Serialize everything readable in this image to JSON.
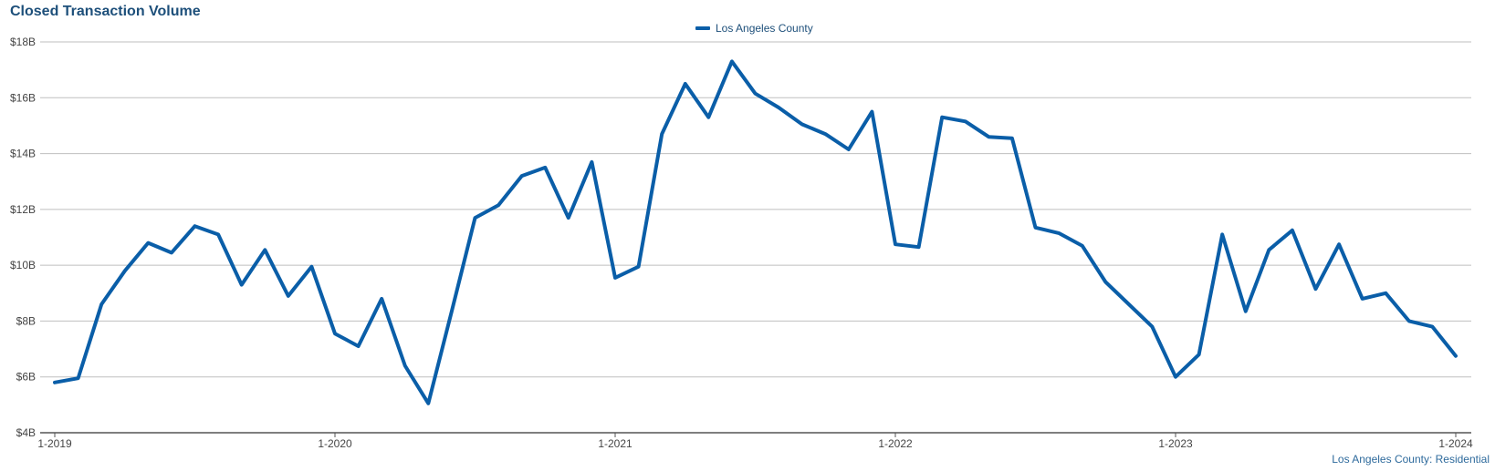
{
  "chart_data": {
    "type": "line",
    "title": "Closed Transaction Volume",
    "footer": "Los Angeles County: Residential",
    "legend_position": "top-center",
    "ylim": [
      4,
      18
    ],
    "y_ticks": [
      4,
      6,
      8,
      10,
      12,
      14,
      16,
      18
    ],
    "y_tick_labels": [
      "$4B",
      "$6B",
      "$8B",
      "$10B",
      "$12B",
      "$14B",
      "$16B",
      "$18B"
    ],
    "x_ticks": [
      0,
      12,
      24,
      36,
      48,
      60
    ],
    "x_tick_labels": [
      "1-2019",
      "1-2020",
      "1-2021",
      "1-2022",
      "1-2023",
      "1-2024"
    ],
    "xlim": [
      0,
      60
    ],
    "grid": true,
    "colors": {
      "series": "#0a5ea8",
      "grid": "#bfbfbf",
      "axis": "#555555"
    },
    "series": [
      {
        "name": "Los Angeles County",
        "values": [
          5.8,
          5.95,
          8.6,
          9.8,
          10.8,
          10.45,
          11.4,
          11.1,
          9.3,
          10.55,
          8.9,
          9.95,
          7.55,
          7.1,
          8.8,
          6.4,
          5.05,
          8.35,
          11.7,
          12.15,
          13.2,
          13.5,
          11.7,
          13.7,
          9.55,
          9.95,
          14.7,
          16.5,
          15.3,
          17.3,
          16.15,
          15.65,
          15.05,
          14.7,
          14.15,
          15.5,
          10.75,
          10.65,
          15.3,
          15.15,
          14.6,
          14.55,
          11.35,
          11.15,
          10.7,
          9.4,
          8.6,
          7.8,
          6.0,
          6.8,
          11.1,
          8.35,
          10.55,
          11.25,
          9.15,
          10.75,
          8.8,
          9.0,
          8.0,
          7.8,
          6.75
        ]
      }
    ]
  }
}
